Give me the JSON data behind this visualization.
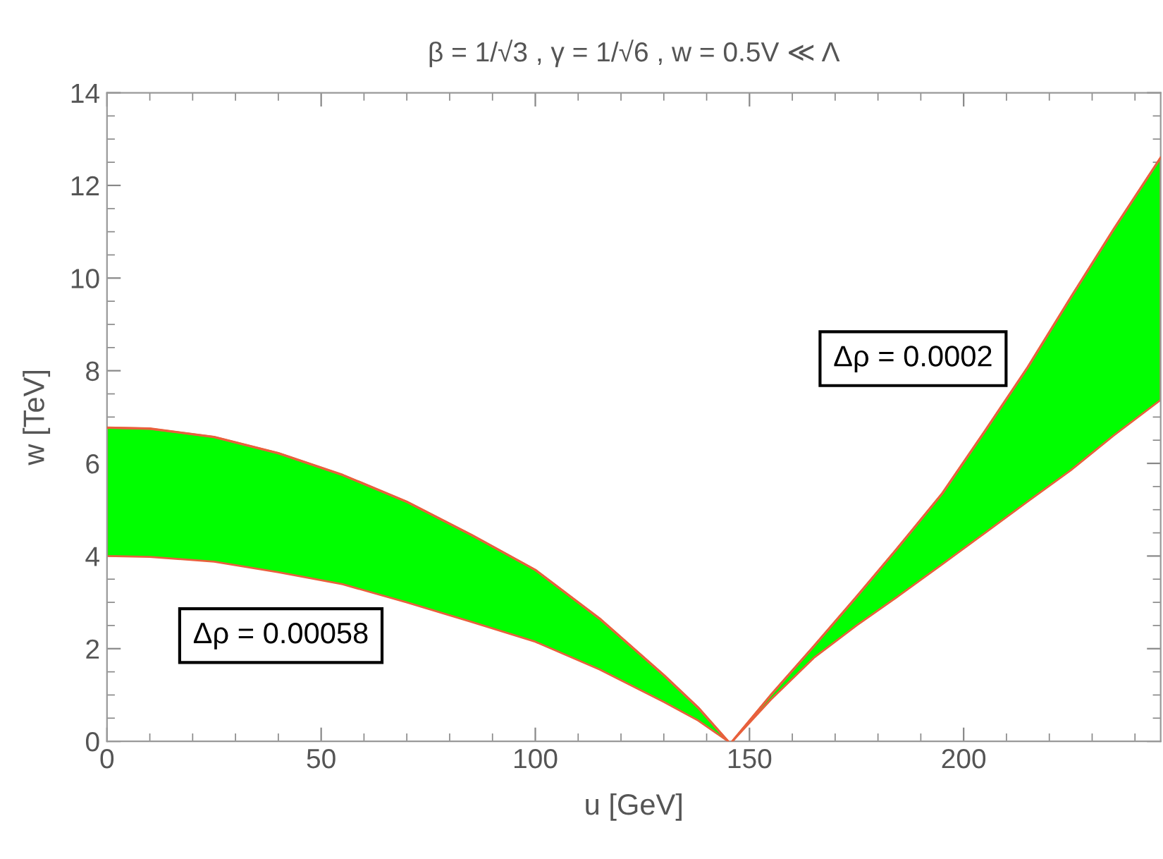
{
  "chart_data": {
    "type": "line",
    "title": "β = 1/√3 , γ = 1/√6 , w = 0.5V ≪ Λ",
    "xlabel": "u [GeV]",
    "ylabel": "w [TeV]",
    "series": [
      {
        "color": "#e8603c",
        "upper": [
          6.77,
          6.75,
          6.57,
          6.22,
          5.75,
          5.17,
          4.46,
          3.7,
          2.65,
          1.43,
          0.73,
          0
        ],
        "x": [
          0,
          10,
          25,
          40,
          55,
          70,
          85,
          100,
          115,
          130,
          138,
          145
        ],
        "lower": [
          4.0,
          3.98,
          3.88,
          3.65,
          3.39,
          3.0,
          2.58,
          2.15,
          1.55,
          0.85,
          0.45,
          0
        ],
        "values": [
          6.77,
          6.75,
          6.57,
          6.22,
          5.75,
          5.17,
          4.46,
          3.7,
          2.65,
          1.43,
          0.73,
          0
        ]
      },
      {
        "color": "#e8603c",
        "upper": [
          0,
          1.0,
          2.05,
          3.12,
          4.22,
          5.35,
          6.7,
          8.08,
          9.58,
          11.05,
          12.6
        ],
        "x": [
          146,
          155,
          165,
          175,
          185,
          195,
          205,
          215,
          225,
          235,
          246
        ],
        "lower": [
          0,
          0.9,
          1.8,
          2.5,
          3.15,
          3.82,
          4.5,
          5.18,
          5.85,
          6.6,
          7.37
        ],
        "values": [
          0,
          1.0,
          2.05,
          3.12,
          4.22,
          5.35,
          6.7,
          8.08,
          9.58,
          11.05,
          12.6
        ]
      }
    ],
    "annotations": [
      "Δρ = 0.00058",
      "Δρ = 0.0002"
    ],
    "xlim": [
      0,
      246
    ],
    "ylim": [
      0,
      14
    ],
    "xticks": [
      0,
      50,
      100,
      150,
      200
    ],
    "yticks": [
      0,
      2,
      4,
      6,
      8,
      10,
      12,
      14
    ],
    "grid": false,
    "legend": false
  }
}
